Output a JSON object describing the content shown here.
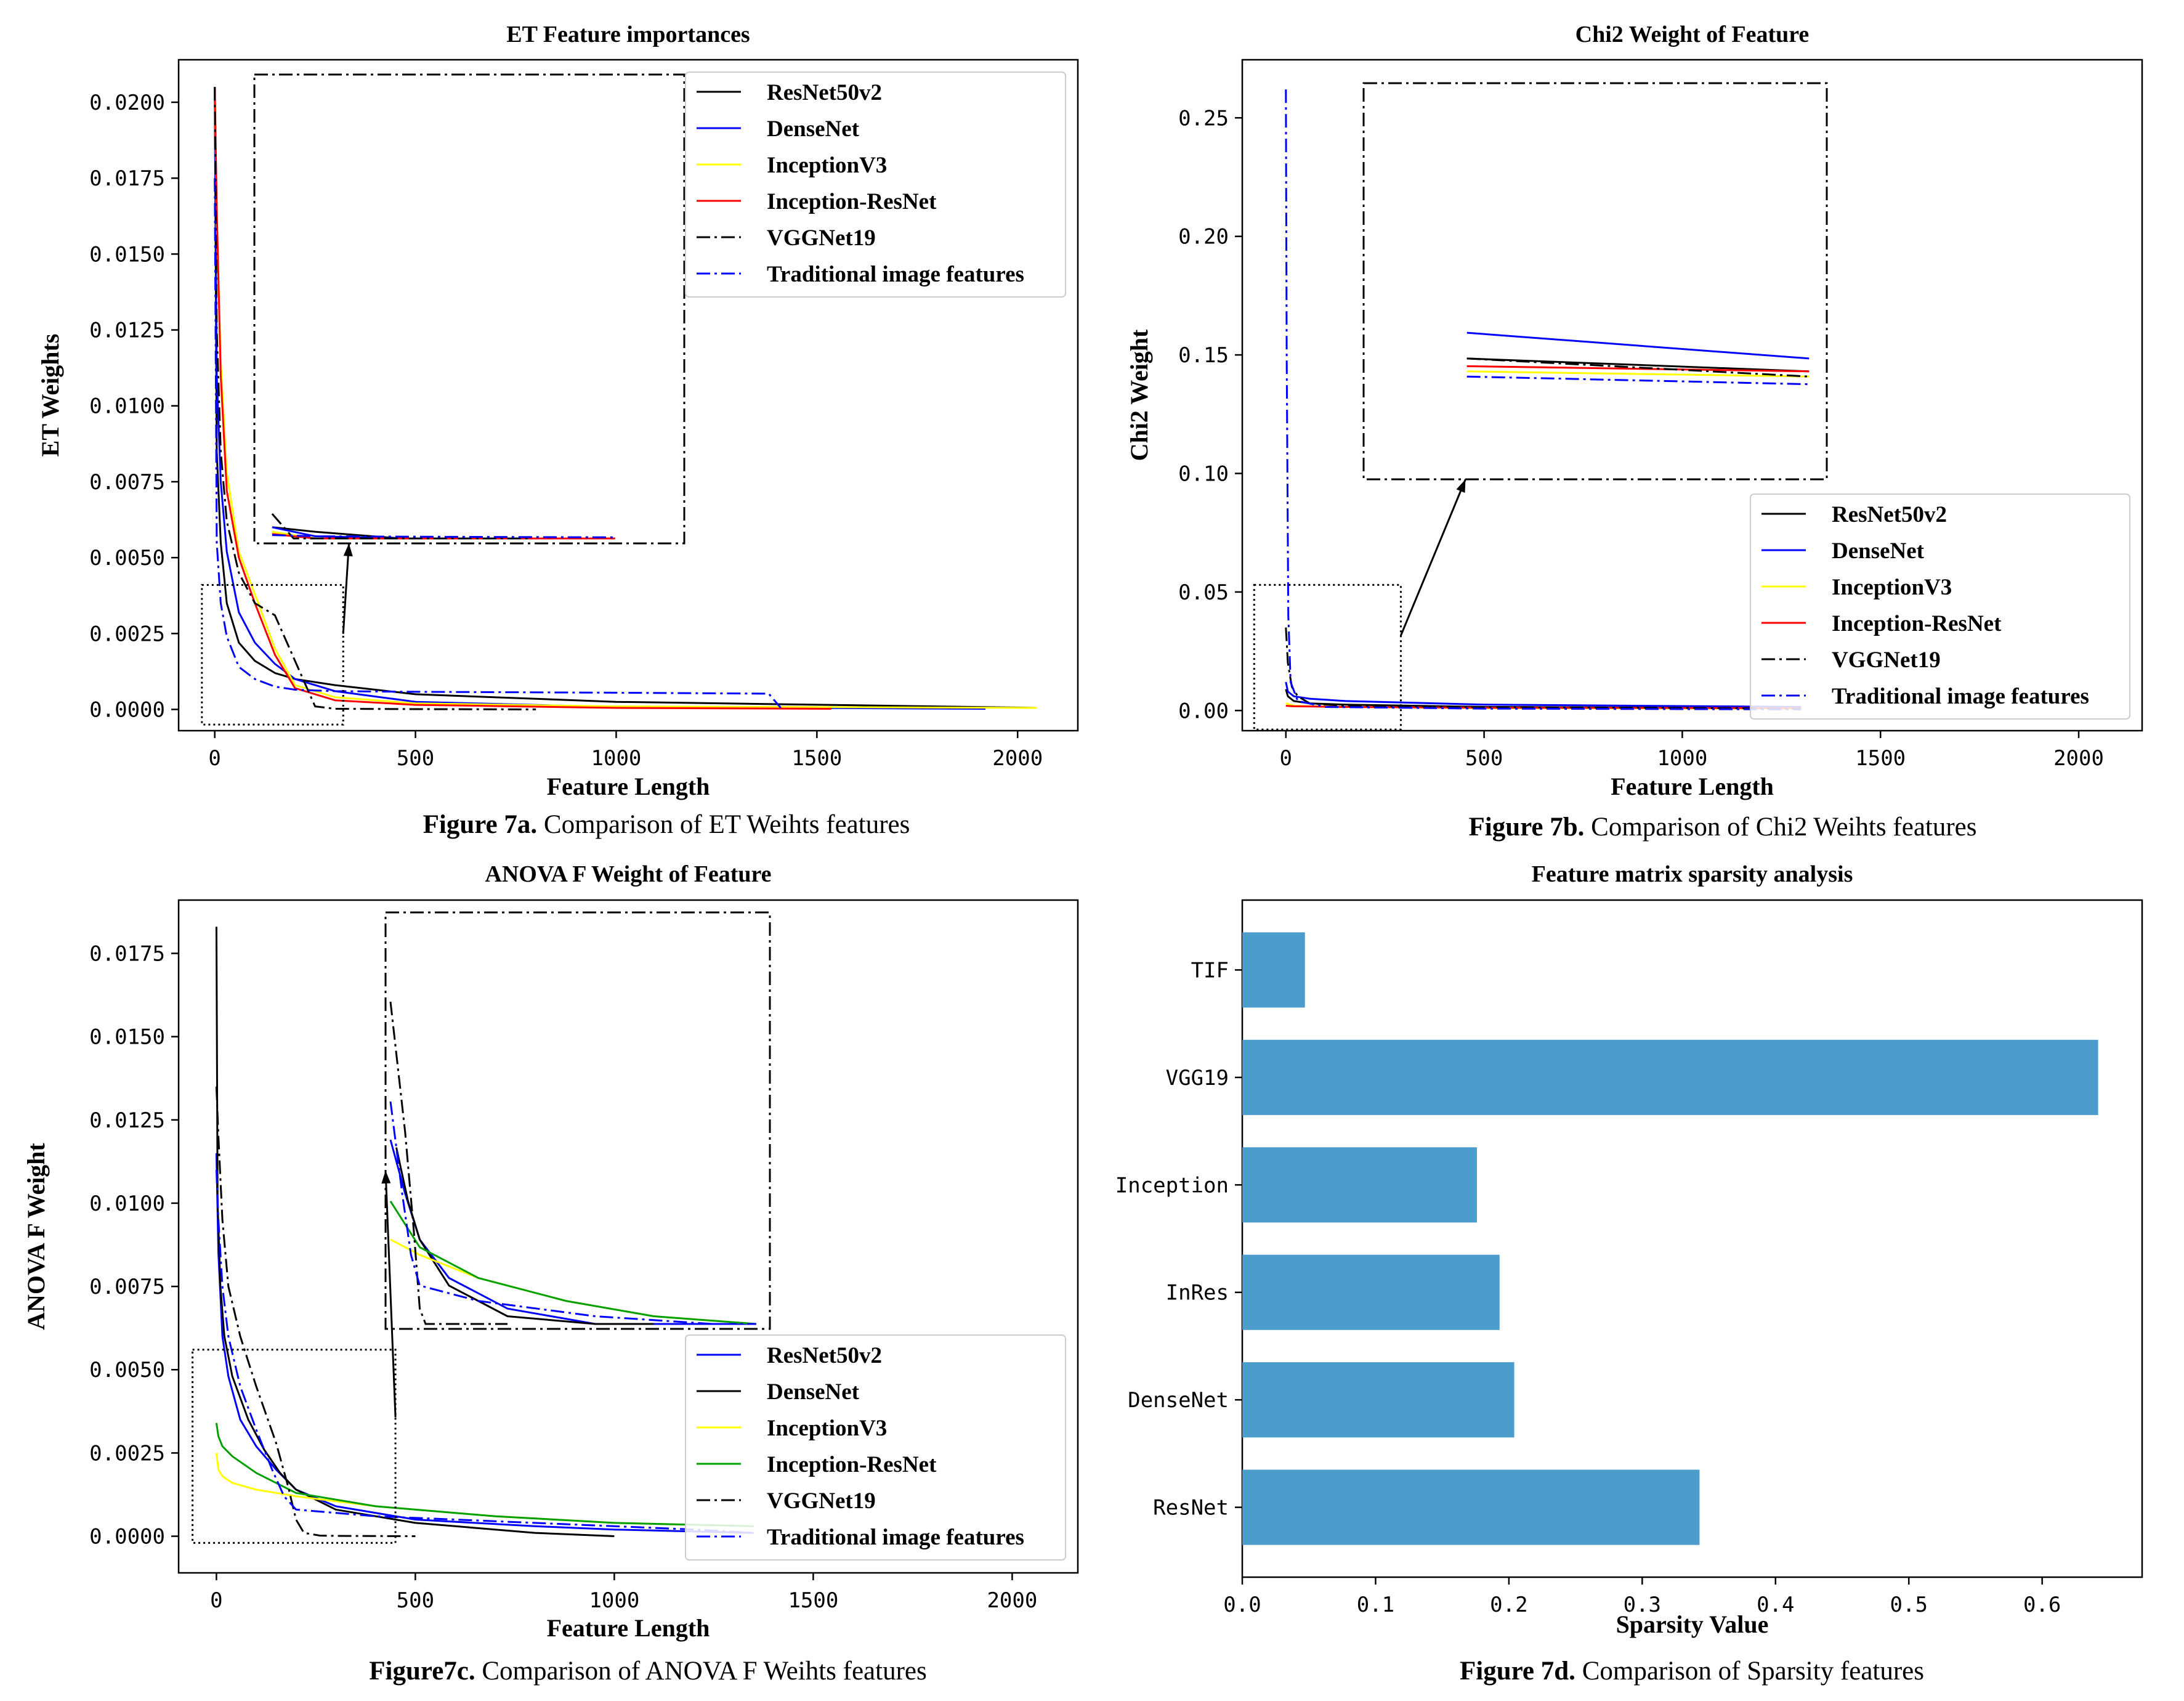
{
  "chart_data": [
    {
      "type": "line",
      "title": "ET Feature importances",
      "xlabel": "Feature Length",
      "ylabel": "ET Weights",
      "caption_bold": "Figure 7a.",
      "caption_rest": " Comparison of ET Weihts features",
      "xlim": [
        -90,
        2150
      ],
      "ylim": [
        -0.0007,
        0.0214
      ],
      "xticks": [
        0,
        500,
        1000,
        1500,
        2000
      ],
      "xtick_labels": [
        "0",
        "500",
        "1000",
        "1500",
        "2000"
      ],
      "yticks": [
        0,
        0.0025,
        0.005,
        0.0075,
        0.01,
        0.0125,
        0.015,
        0.0175,
        0.02
      ],
      "ytick_labels": [
        "0.0000",
        "0.0025",
        "0.0050",
        "0.0075",
        "0.0100",
        "0.0125",
        "0.0150",
        "0.0175",
        "0.0200"
      ],
      "legend_position": "top-right",
      "series": [
        {
          "name": "ResNet50v2",
          "color": "#000000",
          "dash": "solid",
          "x": [
            0,
            5,
            15,
            30,
            60,
            100,
            150,
            200,
            300,
            500,
            1000,
            2048
          ],
          "y": [
            0.0205,
            0.0085,
            0.0055,
            0.0035,
            0.0022,
            0.0016,
            0.0012,
            0.001,
            0.0008,
            0.0005,
            0.00025,
            5e-05
          ]
        },
        {
          "name": "DenseNet",
          "color": "#0000ff",
          "dash": "solid",
          "x": [
            0,
            5,
            15,
            30,
            60,
            100,
            150,
            200,
            300,
            500,
            1000,
            1920
          ],
          "y": [
            0.0205,
            0.011,
            0.0075,
            0.0052,
            0.0032,
            0.0022,
            0.0015,
            0.001,
            0.0006,
            0.00025,
            8e-05,
            2e-05
          ]
        },
        {
          "name": "InceptionV3",
          "color": "#ffff00",
          "dash": "solid",
          "x": [
            0,
            5,
            15,
            30,
            60,
            100,
            150,
            200,
            300,
            500,
            1000,
            2048
          ],
          "y": [
            0.0205,
            0.016,
            0.0115,
            0.0078,
            0.0052,
            0.0038,
            0.002,
            0.0008,
            0.0004,
            0.0002,
            0.0001,
            5e-05
          ]
        },
        {
          "name": "Inception-ResNet",
          "color": "#ff0000",
          "dash": "solid",
          "x": [
            0,
            5,
            15,
            30,
            60,
            100,
            150,
            200,
            300,
            500,
            1000,
            1536
          ],
          "y": [
            0.0205,
            0.0165,
            0.011,
            0.0072,
            0.005,
            0.0035,
            0.0018,
            0.0007,
            0.0003,
            0.00015,
            5e-05,
            2e-05
          ]
        },
        {
          "name": "VGGNet19",
          "color": "#000000",
          "dash": "dashdot",
          "x": [
            0,
            5,
            15,
            30,
            60,
            100,
            150,
            200,
            250,
            300,
            500,
            800
          ],
          "y": [
            0.0205,
            0.0125,
            0.0085,
            0.0062,
            0.0045,
            0.0035,
            0.0031,
            0.0016,
            0.0001,
            2e-05,
            1e-05,
            0
          ]
        },
        {
          "name": "Traditional image features",
          "color": "#0000ff",
          "dash": "dashdot",
          "x": [
            0,
            5,
            15,
            30,
            60,
            100,
            150,
            200,
            300,
            500,
            1000,
            1380,
            1410
          ],
          "y": [
            0.0175,
            0.0055,
            0.0035,
            0.0024,
            0.0014,
            0.001,
            0.00075,
            0.00065,
            0.0006,
            0.00058,
            0.00055,
            0.00052,
            5e-05
          ]
        }
      ]
    },
    {
      "type": "line",
      "title": "Chi2 Weight of Feature",
      "xlabel": "Feature Length",
      "ylabel": "Chi2 Weight",
      "caption_bold": "Figure 7b.",
      "caption_rest": " Comparison of Chi2 Weihts features",
      "xlim": [
        -110,
        2160
      ],
      "ylim": [
        -0.0085,
        0.2745
      ],
      "xticks": [
        0,
        500,
        1000,
        1500,
        2000
      ],
      "xtick_labels": [
        "0",
        "500",
        "1000",
        "1500",
        "2000"
      ],
      "yticks": [
        0,
        0.05,
        0.1,
        0.15,
        0.2,
        0.25
      ],
      "ytick_labels": [
        "0.00",
        "0.05",
        "0.10",
        "0.15",
        "0.20",
        "0.25"
      ],
      "legend_position": "lower-right",
      "series": [
        {
          "name": "ResNet50v2",
          "color": "#000000",
          "dash": "solid",
          "x": [
            0,
            5,
            20,
            60,
            150,
            500,
            1300
          ],
          "y": [
            0.009,
            0.006,
            0.004,
            0.003,
            0.0025,
            0.0015,
            0.001
          ]
        },
        {
          "name": "DenseNet",
          "color": "#0000ff",
          "dash": "solid",
          "x": [
            0,
            5,
            20,
            60,
            150,
            500,
            1300
          ],
          "y": [
            0.012,
            0.008,
            0.006,
            0.005,
            0.004,
            0.0025,
            0.0015
          ]
        },
        {
          "name": "InceptionV3",
          "color": "#ffff00",
          "dash": "solid",
          "x": [
            0,
            20,
            150,
            500,
            1300
          ],
          "y": [
            0.003,
            0.002,
            0.0015,
            0.001,
            0.0008
          ]
        },
        {
          "name": "Inception-ResNet",
          "color": "#ff0000",
          "dash": "solid",
          "x": [
            0,
            20,
            150,
            500,
            1300
          ],
          "y": [
            0.002,
            0.0018,
            0.0015,
            0.0012,
            0.001
          ]
        },
        {
          "name": "VGGNet19",
          "color": "#000000",
          "dash": "dashdot",
          "x": [
            0,
            5,
            15,
            30,
            60,
            150,
            500,
            1300
          ],
          "y": [
            0.035,
            0.02,
            0.01,
            0.006,
            0.003,
            0.002,
            0.0015,
            0.0008
          ]
        },
        {
          "name": "Traditional image features",
          "color": "#0000ff",
          "dash": "dashdot",
          "x": [
            0,
            2,
            6,
            12,
            30,
            100,
            500,
            1300
          ],
          "y": [
            0.262,
            0.15,
            0.04,
            0.012,
            0.004,
            0.0015,
            0.0008,
            0.0005
          ]
        }
      ]
    },
    {
      "type": "line",
      "title": "ANOVA F Weight of Feature",
      "xlabel": "Feature Length",
      "ylabel": "ANOVA F Weight",
      "caption_bold": "Figure7c.",
      "caption_rest": " Comparison of ANOVA F Weihts features",
      "xlim": [
        -95,
        2165
      ],
      "ylim": [
        -0.0011,
        0.0191
      ],
      "xticks": [
        0,
        500,
        1000,
        1500,
        2000
      ],
      "xtick_labels": [
        "0",
        "500",
        "1000",
        "1500",
        "2000"
      ],
      "yticks": [
        0,
        0.0025,
        0.005,
        0.0075,
        0.01,
        0.0125,
        0.015,
        0.0175
      ],
      "ytick_labels": [
        "0.0000",
        "0.0025",
        "0.0050",
        "0.0075",
        "0.0100",
        "0.0125",
        "0.0150",
        "0.0175"
      ],
      "legend_position": "lower-right",
      "series": [
        {
          "name": "ResNet50v2",
          "color": "#0000ff",
          "dash": "solid",
          "x": [
            0,
            5,
            15,
            30,
            60,
            100,
            150,
            200,
            300,
            500,
            800,
            1000,
            1350
          ],
          "y": [
            0.0115,
            0.0085,
            0.006,
            0.0048,
            0.0035,
            0.0027,
            0.002,
            0.0014,
            0.0009,
            0.0005,
            0.0003,
            0.0002,
            0.0001
          ]
        },
        {
          "name": "DenseNet",
          "color": "#000000",
          "dash": "solid",
          "x": [
            0,
            3,
            10,
            20,
            40,
            80,
            120,
            160,
            200,
            300,
            500,
            800,
            1000
          ],
          "y": [
            0.0183,
            0.01,
            0.0075,
            0.006,
            0.0048,
            0.0035,
            0.0026,
            0.0019,
            0.0014,
            0.0008,
            0.0004,
            0.0001,
            0
          ]
        },
        {
          "name": "InceptionV3",
          "color": "#ffff00",
          "dash": "solid",
          "x": [
            0,
            5,
            15,
            40,
            100,
            200,
            400,
            700,
            1000,
            1350
          ],
          "y": [
            0.0025,
            0.002,
            0.0018,
            0.0016,
            0.0014,
            0.0012,
            0.0009,
            0.0006,
            0.0004,
            0.0003
          ]
        },
        {
          "name": "Inception-ResNet",
          "color": "#00a000",
          "dash": "solid",
          "x": [
            0,
            5,
            15,
            40,
            100,
            200,
            400,
            700,
            1000,
            1350
          ],
          "y": [
            0.0034,
            0.003,
            0.0027,
            0.0024,
            0.0019,
            0.0013,
            0.0009,
            0.0006,
            0.0004,
            0.0003
          ]
        },
        {
          "name": "VGGNet19",
          "color": "#000000",
          "dash": "dashdot",
          "x": [
            0,
            5,
            15,
            30,
            60,
            100,
            150,
            180,
            200,
            220,
            260,
            300,
            500
          ],
          "y": [
            0.0135,
            0.012,
            0.0095,
            0.0075,
            0.006,
            0.0045,
            0.0028,
            0.0015,
            0.0005,
            0.0001,
            2e-05,
            1e-05,
            0
          ]
        },
        {
          "name": "Traditional image features",
          "color": "#0000ff",
          "dash": "dashdot",
          "x": [
            0,
            5,
            15,
            30,
            60,
            100,
            140,
            170,
            200,
            400,
            800,
            1200,
            1350
          ],
          "y": [
            0.011,
            0.0095,
            0.0075,
            0.006,
            0.0045,
            0.0032,
            0.002,
            0.0012,
            0.0008,
            0.0006,
            0.0004,
            0.0002,
            0.0001
          ]
        }
      ]
    },
    {
      "type": "bar",
      "orientation": "horizontal",
      "title": "Feature matrix sparsity analysis",
      "xlabel": "Sparsity Value",
      "ylabel": "",
      "caption_bold": "Figure 7d.",
      "caption_rest": " Comparison of Sparsity features",
      "categories": [
        "ResNet",
        "DenseNet",
        "InRes",
        "Inception",
        "VGG19",
        "TIF"
      ],
      "values": [
        0.343,
        0.204,
        0.193,
        0.176,
        0.642,
        0.047
      ],
      "bar_color": "#4c9dcc",
      "xlim": [
        0,
        0.675
      ],
      "xticks": [
        0,
        0.1,
        0.2,
        0.3,
        0.4,
        0.5,
        0.6
      ],
      "xtick_labels": [
        "0.0",
        "0.1",
        "0.2",
        "0.3",
        "0.4",
        "0.5",
        "0.6"
      ]
    }
  ]
}
